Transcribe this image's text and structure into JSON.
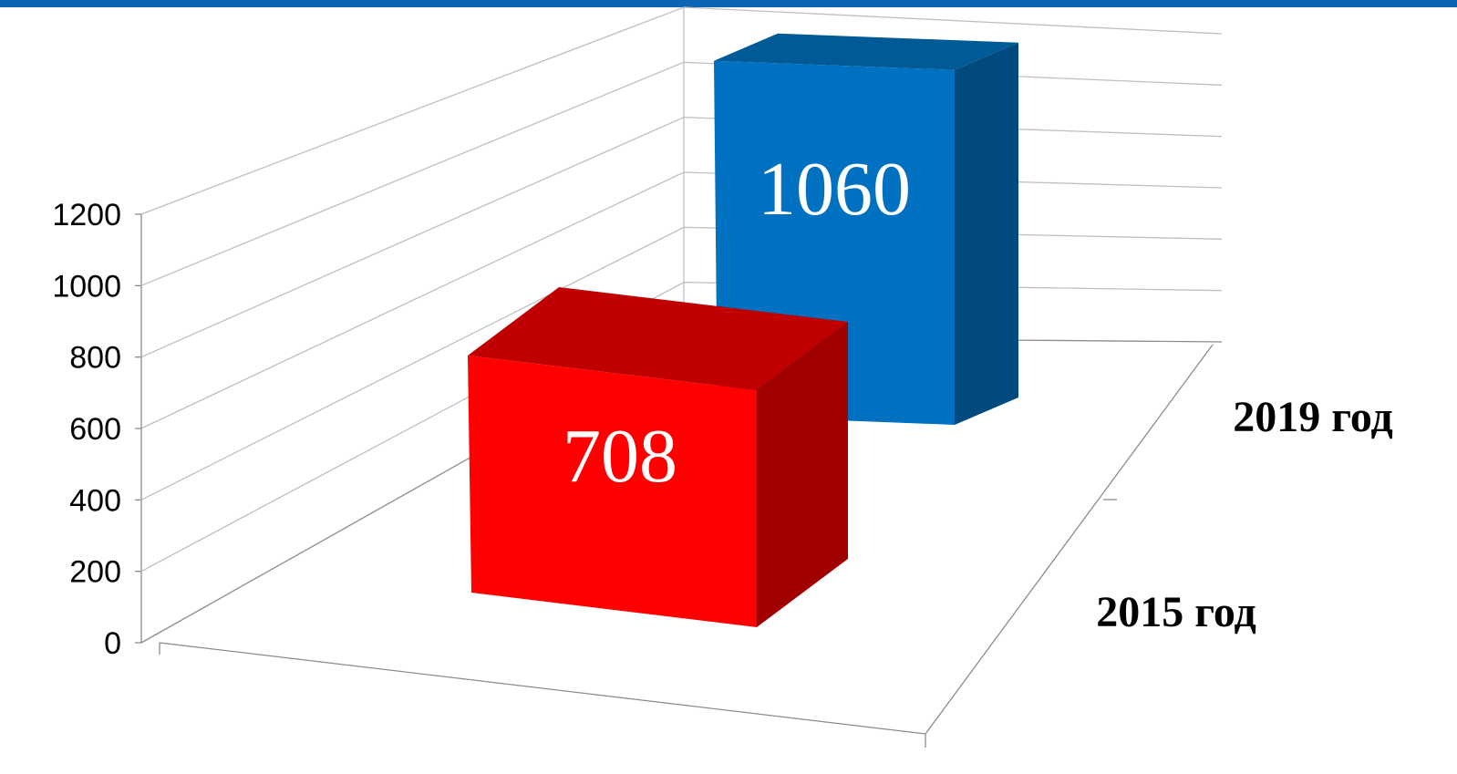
{
  "colors": {
    "top_bar": "#0b64b4",
    "gridline": "#bfbfbf",
    "axis": "#8c8c8c",
    "red_front": "#ff0000",
    "red_top": "#c00000",
    "red_side": "#a00000",
    "blue_front": "#0070c0",
    "blue_top": "#005a96",
    "blue_side": "#004a80"
  },
  "chart_data": {
    "type": "bar",
    "style": "3d-column",
    "categories": [
      "2015 год",
      "2019 год"
    ],
    "values": [
      708,
      1060
    ],
    "data_labels": [
      "708",
      "1060"
    ],
    "bar_colors": [
      "red",
      "blue"
    ],
    "y_ticks": [
      "0",
      "200",
      "400",
      "600",
      "800",
      "1000",
      "1200"
    ],
    "ylim": [
      0,
      1200
    ],
    "grid": true,
    "legend": "none",
    "title": "",
    "xlabel": "",
    "ylabel": ""
  }
}
